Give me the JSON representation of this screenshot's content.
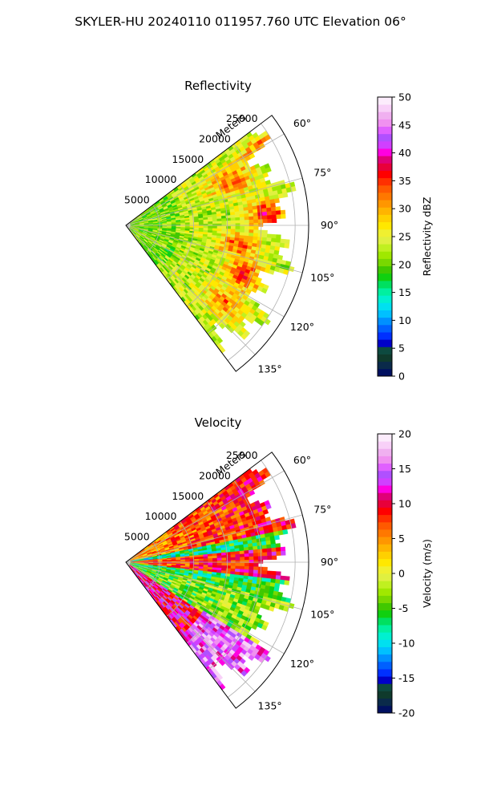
{
  "figure": {
    "suptitle": "SKYLER-HU  20240110  011957.760 UTC Elevation 06°"
  },
  "chart_data": [
    {
      "type": "heatmap",
      "projection": "polar-sector",
      "title": "Reflectivity",
      "range_label": "Meters",
      "range_ticks": [
        "5000",
        "10000",
        "15000",
        "20000",
        "25000"
      ],
      "range_tick_values": [
        5000,
        10000,
        15000,
        20000,
        25000
      ],
      "rlim": [
        0,
        27000
      ],
      "azimuth_range_deg": [
        53,
        143
      ],
      "azimuth_ticks": [
        "60°",
        "75°",
        "90°",
        "105°",
        "120°",
        "135°"
      ],
      "azimuth_tick_values": [
        60,
        75,
        90,
        105,
        120,
        135
      ],
      "grid": true,
      "colorbar": {
        "label": "Reflectivity dBZ",
        "range": [
          0,
          50
        ],
        "ticks": [
          "0",
          "5",
          "10",
          "15",
          "20",
          "25",
          "30",
          "35",
          "40",
          "45",
          "50"
        ],
        "tick_values": [
          0,
          5,
          10,
          15,
          20,
          25,
          30,
          35,
          40,
          45,
          50
        ],
        "colors": [
          "#001060",
          "#0a2a4a",
          "#0f3a2c",
          "#0d4a40",
          "#0000c8",
          "#0030ff",
          "#0060ff",
          "#0090ff",
          "#00c0ff",
          "#00e0f0",
          "#00f0d0",
          "#00f0a0",
          "#00e060",
          "#10d010",
          "#40c800",
          "#78d800",
          "#a0e800",
          "#c0f020",
          "#e0f040",
          "#f0f030",
          "#ffe800",
          "#ffd000",
          "#ffb400",
          "#ff9600",
          "#ff7800",
          "#ff5a00",
          "#ff3000",
          "#ff0000",
          "#e8003a",
          "#e00078",
          "#ff00e0",
          "#d040ff",
          "#b050ff",
          "#e060ff",
          "#f090f0",
          "#f0b0f0",
          "#f8d0f8",
          "#fcecfc"
        ]
      }
    },
    {
      "type": "heatmap",
      "projection": "polar-sector",
      "title": "Velocity",
      "range_label": "Meters",
      "range_ticks": [
        "5000",
        "10000",
        "15000",
        "20000",
        "25000"
      ],
      "range_tick_values": [
        5000,
        10000,
        15000,
        20000,
        25000
      ],
      "rlim": [
        0,
        27000
      ],
      "azimuth_range_deg": [
        53,
        143
      ],
      "azimuth_ticks": [
        "60°",
        "75°",
        "90°",
        "105°",
        "120°",
        "135°"
      ],
      "azimuth_tick_values": [
        60,
        75,
        90,
        105,
        120,
        135
      ],
      "grid": true,
      "colorbar": {
        "label": "Velocity (m/s)",
        "range": [
          -20,
          20
        ],
        "ticks": [
          "-20",
          "-15",
          "-10",
          "-5",
          "0",
          "5",
          "10",
          "15",
          "20"
        ],
        "tick_values": [
          -20,
          -15,
          -10,
          -5,
          0,
          5,
          10,
          15,
          20
        ],
        "colors": [
          "#001060",
          "#0a2a4a",
          "#0f3a2c",
          "#0d4a40",
          "#0000c8",
          "#0030ff",
          "#0060ff",
          "#0090ff",
          "#00c0ff",
          "#00e0f0",
          "#00f0d0",
          "#00f0a0",
          "#00e060",
          "#10d010",
          "#40c800",
          "#78d800",
          "#a0e800",
          "#c0f020",
          "#e0f040",
          "#f0f030",
          "#ffe800",
          "#ffd000",
          "#ffb400",
          "#ff9600",
          "#ff7800",
          "#ff5a00",
          "#ff3000",
          "#ff0000",
          "#e8003a",
          "#e00078",
          "#ff00e0",
          "#d040ff",
          "#b050ff",
          "#e060ff",
          "#f090f0",
          "#f0b0f0",
          "#f8d0f8",
          "#fcecfc"
        ]
      }
    }
  ]
}
